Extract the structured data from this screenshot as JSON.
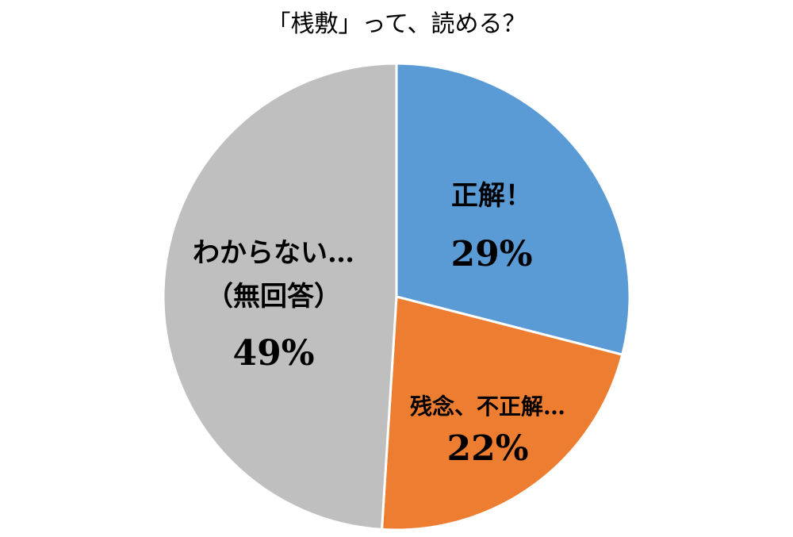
{
  "chart_data": {
    "type": "pie",
    "title": "「桟敷」って、読める？",
    "start_angle": "12 o'clock",
    "direction": "clockwise",
    "slices": [
      {
        "label_lines": [
          "正解！"
        ],
        "value": 29,
        "value_label": "29%",
        "color": "#5B9BD5"
      },
      {
        "label_lines": [
          "残念、不正解…"
        ],
        "value": 22,
        "value_label": "22%",
        "color": "#ED7D31"
      },
      {
        "label_lines": [
          "わからない…",
          "（無回答）"
        ],
        "value": 49,
        "value_label": "49%",
        "color": "#BFBFBF"
      }
    ],
    "legend": "none"
  }
}
